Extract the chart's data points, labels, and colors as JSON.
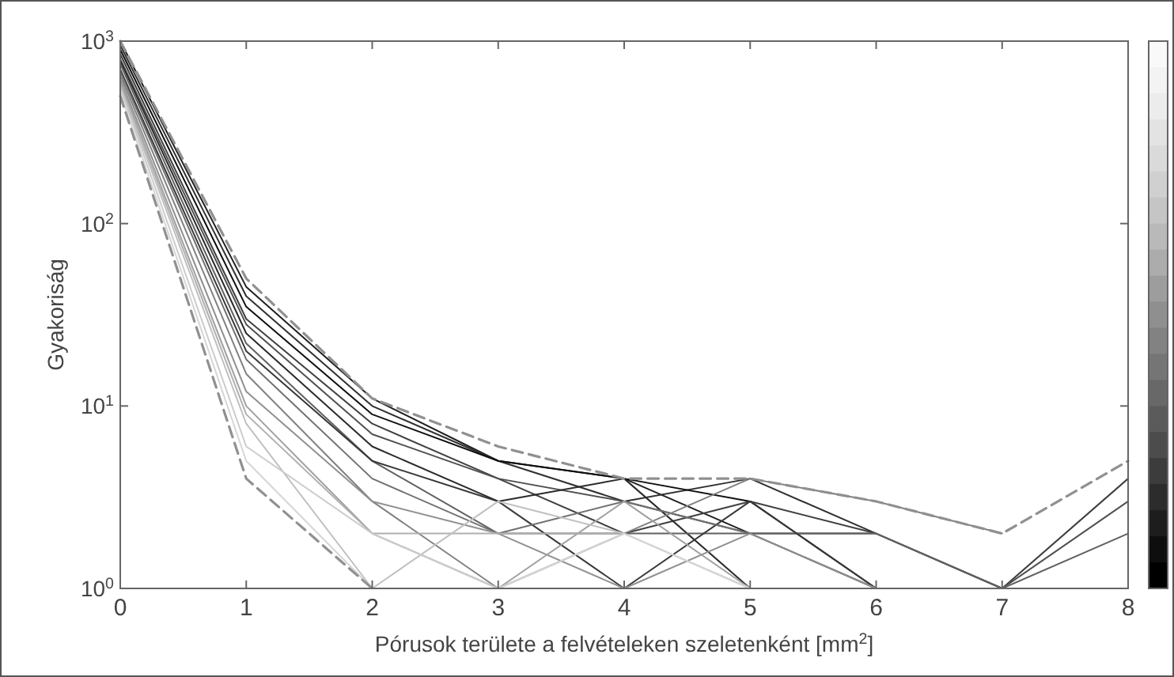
{
  "chart_data": {
    "type": "line",
    "xlabel": "Pórusok területe a felvételeken szeletenként [mm$^{2}$]",
    "ylabel": "Gyakoriság",
    "x": [
      0,
      1,
      2,
      3,
      4,
      5,
      6,
      7,
      8
    ],
    "xlim": [
      0,
      8
    ],
    "xticks": [
      0,
      1,
      2,
      3,
      4,
      5,
      6,
      7,
      8
    ],
    "ylim": [
      1,
      1000
    ],
    "yticks": [
      {
        "value": 1,
        "label": "10$^{0}$"
      },
      {
        "value": 10,
        "label": "10$^{1}$"
      },
      {
        "value": 100,
        "label": "10$^{2}$"
      },
      {
        "value": 1000,
        "label": "10$^{3}$"
      }
    ],
    "log": "y",
    "grid": false,
    "marker": "none",
    "line_style": "solid",
    "series": [
      {
        "color": "#202020",
        "values": [
          1000,
          45,
          11,
          5,
          4,
          2,
          1,
          null,
          null
        ]
      },
      {
        "color": "#303030",
        "values": [
          950,
          40,
          10,
          5,
          3,
          4,
          2,
          null,
          null
        ]
      },
      {
        "color": "#101010",
        "values": [
          900,
          35,
          9,
          5,
          4,
          3,
          1,
          null,
          null
        ]
      },
      {
        "color": "#404040",
        "values": [
          850,
          30,
          8,
          4,
          2,
          3,
          2,
          1,
          4
        ]
      },
      {
        "color": "#505050",
        "values": [
          800,
          28,
          7,
          4,
          3,
          2,
          2,
          1,
          3
        ]
      },
      {
        "color": "#2a2a2a",
        "values": [
          780,
          25,
          6,
          3,
          4,
          1,
          null,
          null,
          null
        ]
      },
      {
        "color": "#606060",
        "values": [
          750,
          22,
          5,
          2,
          2,
          2,
          2,
          1,
          2
        ]
      },
      {
        "color": "#383838",
        "values": [
          700,
          20,
          5,
          3,
          1,
          3,
          1,
          null,
          null
        ]
      },
      {
        "color": "#707070",
        "values": [
          680,
          18,
          4,
          2,
          3,
          2,
          null,
          null,
          null
        ]
      },
      {
        "color": "#808080",
        "values": [
          650,
          15,
          3,
          1,
          2,
          4,
          3,
          2,
          null
        ]
      },
      {
        "color": "#909090",
        "values": [
          620,
          12,
          3,
          2,
          1,
          2,
          1,
          null,
          null
        ]
      },
      {
        "color": "#a0a0a0",
        "values": [
          600,
          10,
          2,
          1,
          3,
          1,
          null,
          null,
          null
        ]
      },
      {
        "color": "#b0b0b0",
        "values": [
          580,
          9,
          2,
          2,
          2,
          1,
          null,
          null,
          null
        ]
      },
      {
        "color": "#c0c0c0",
        "values": [
          560,
          8,
          1,
          3,
          2,
          null,
          null,
          null,
          null
        ]
      },
      {
        "color": "#cccccc",
        "values": [
          550,
          6,
          2,
          1,
          null,
          null,
          null,
          null,
          null
        ]
      },
      {
        "color": "#d6d6d6",
        "values": [
          520,
          5,
          1,
          1,
          2,
          1,
          null,
          null,
          null
        ]
      },
      {
        "color": "#909090",
        "line_style": "dashed",
        "values": [
          1000,
          50,
          11,
          6,
          4,
          4,
          3,
          2,
          5
        ]
      },
      {
        "color": "#909090",
        "line_style": "dashed",
        "values": [
          500,
          4,
          1,
          null,
          null,
          null,
          null,
          null,
          null
        ]
      }
    ]
  }
}
